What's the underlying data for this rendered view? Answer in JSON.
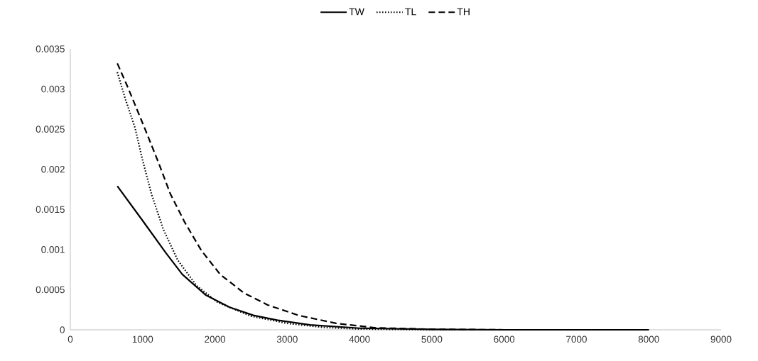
{
  "chart_data": {
    "type": "line",
    "xlim": [
      0,
      9000
    ],
    "ylim": [
      0,
      0.0035
    ],
    "xticks": [
      0,
      1000,
      2000,
      3000,
      4000,
      5000,
      6000,
      7000,
      8000,
      9000
    ],
    "yticks": [
      0,
      0.0005,
      0.001,
      0.0015,
      0.002,
      0.0025,
      0.003,
      0.0035
    ],
    "legend": "top",
    "marker": "none",
    "series": [
      {
        "name": "TW",
        "color": "#000000",
        "line_style": "solid",
        "x": [
          650,
          992,
          1320,
          1549,
          1877,
          2204,
          2532,
          2859,
          3318,
          4000,
          5000,
          6000,
          7000,
          8000
        ],
        "values": [
          0.00179,
          0.00137,
          0.00096,
          0.00069,
          0.00043,
          0.00028,
          0.00018,
          0.00012,
          6e-05,
          2e-05,
          5e-06,
          0,
          0,
          0
        ]
      },
      {
        "name": "TL",
        "color": "#000000",
        "line_style": "dotted",
        "x": [
          650,
          763,
          894,
          992,
          1123,
          1287,
          1484,
          1746,
          2041,
          2500,
          3000,
          3500,
          4000,
          5000,
          6000,
          7000,
          8000
        ],
        "values": [
          0.00321,
          0.00287,
          0.00252,
          0.00214,
          0.00169,
          0.00125,
          0.00087,
          0.00055,
          0.00034,
          0.00017,
          8e-05,
          3e-05,
          1e-05,
          0,
          0,
          0,
          0
        ]
      },
      {
        "name": "TH",
        "color": "#000000",
        "line_style": "dashed",
        "x": [
          650,
          796,
          1025,
          1221,
          1385,
          1582,
          1811,
          2073,
          2400,
          2728,
          3154,
          3677,
          4235,
          5050,
          6000,
          7000,
          8000
        ],
        "values": [
          0.00332,
          0.00302,
          0.00252,
          0.00208,
          0.00169,
          0.00134,
          0.00099,
          0.00069,
          0.00046,
          0.00031,
          0.00018,
          8e-05,
          2.4e-05,
          6e-06,
          0,
          0,
          0
        ]
      }
    ]
  }
}
